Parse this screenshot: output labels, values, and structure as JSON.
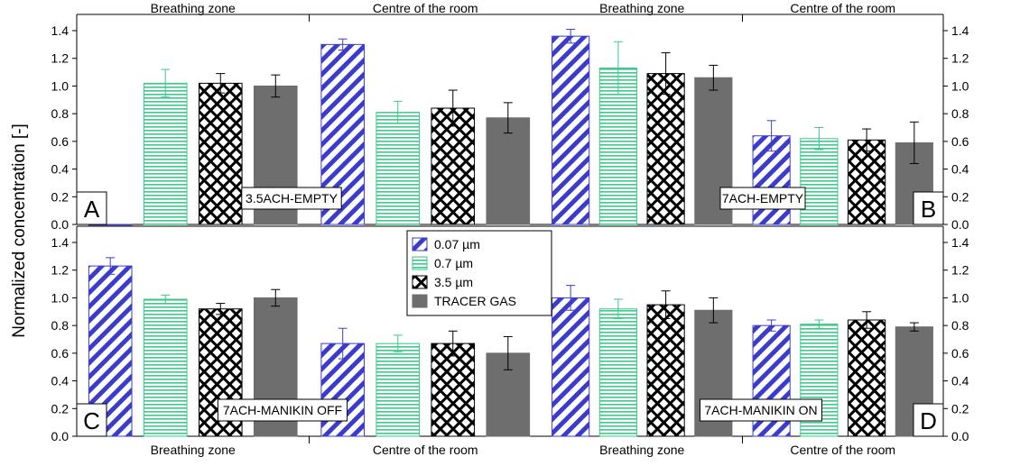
{
  "colors": {
    "series_0_07": "#3c3ccc",
    "series_0_7": "#3cc88a",
    "series_3_5": "#000000",
    "series_tracer": "#6e6e6e",
    "axis": "#000000"
  },
  "chart_data": {
    "type": "bar",
    "ylabel": "Normalized concentration [-]",
    "ylim": [
      0,
      1.4
    ],
    "yticks": [
      "0.0",
      "0.2",
      "0.4",
      "0.6",
      "0.8",
      "1.0",
      "1.2",
      "1.4"
    ],
    "series_names": [
      "0.07 µm",
      "0.7 µm",
      "3.5 µm",
      "TRACER GAS"
    ],
    "legend_placement": "center",
    "grid": false,
    "zones": [
      "Breathing zone",
      "Centre of the room"
    ],
    "panels": [
      {
        "letter": "A",
        "condition": "3.5ACH-EMPTY",
        "zone_values": [
          {
            "zone": "Breathing zone",
            "values": [
              0.0,
              1.02,
              1.02,
              1.0
            ],
            "errors": [
              0.0,
              0.1,
              0.07,
              0.08
            ]
          },
          {
            "zone": "Centre of the room",
            "values": [
              1.3,
              0.81,
              0.84,
              0.77
            ],
            "errors": [
              0.04,
              0.08,
              0.13,
              0.11
            ]
          }
        ]
      },
      {
        "letter": "B",
        "condition": "7ACH-EMPTY",
        "zone_values": [
          {
            "zone": "Breathing zone",
            "values": [
              1.36,
              1.13,
              1.09,
              1.06
            ],
            "errors": [
              0.05,
              0.19,
              0.15,
              0.09
            ]
          },
          {
            "zone": "Centre of the room",
            "values": [
              0.64,
              0.62,
              0.61,
              0.59
            ],
            "errors": [
              0.11,
              0.08,
              0.08,
              0.15
            ]
          }
        ]
      },
      {
        "letter": "C",
        "condition": "7ACH-MANIKIN OFF",
        "zone_values": [
          {
            "zone": "Breathing zone",
            "values": [
              1.23,
              0.99,
              0.92,
              1.0
            ],
            "errors": [
              0.06,
              0.03,
              0.04,
              0.06
            ]
          },
          {
            "zone": "Centre of the room",
            "values": [
              0.67,
              0.67,
              0.67,
              0.6
            ],
            "errors": [
              0.11,
              0.06,
              0.09,
              0.12
            ]
          }
        ]
      },
      {
        "letter": "D",
        "condition": "7ACH-MANIKIN ON",
        "zone_values": [
          {
            "zone": "Breathing zone",
            "values": [
              1.0,
              0.92,
              0.95,
              0.91
            ],
            "errors": [
              0.09,
              0.07,
              0.1,
              0.09
            ]
          },
          {
            "zone": "Centre of the room",
            "values": [
              0.8,
              0.81,
              0.84,
              0.79
            ],
            "errors": [
              0.04,
              0.03,
              0.06,
              0.03
            ]
          }
        ]
      }
    ]
  }
}
